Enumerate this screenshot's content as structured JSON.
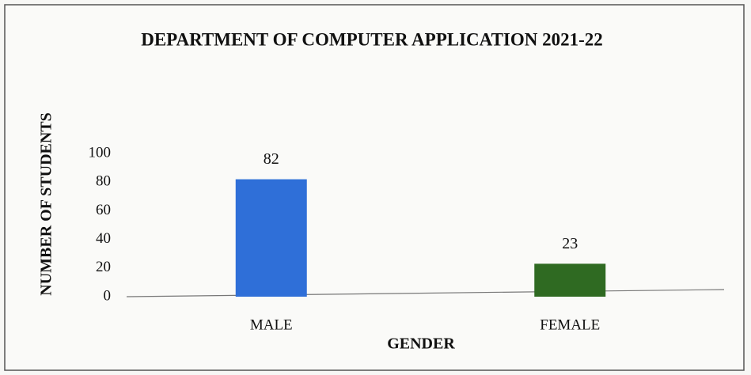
{
  "chart_data": {
    "type": "bar",
    "title": "DEPARTMENT OF COMPUTER APPLICATION  2021-22",
    "x_label": "GENDER",
    "y_label": "NUMBER OF STUDENTS",
    "categories": [
      "MALE",
      "FEMALE"
    ],
    "values": [
      82,
      23
    ],
    "colors": [
      "#2f6fd8",
      "#2f6a22"
    ],
    "ylim": [
      0,
      100
    ],
    "yticks": [
      0,
      20,
      40,
      60,
      80,
      100
    ],
    "grid": false
  }
}
